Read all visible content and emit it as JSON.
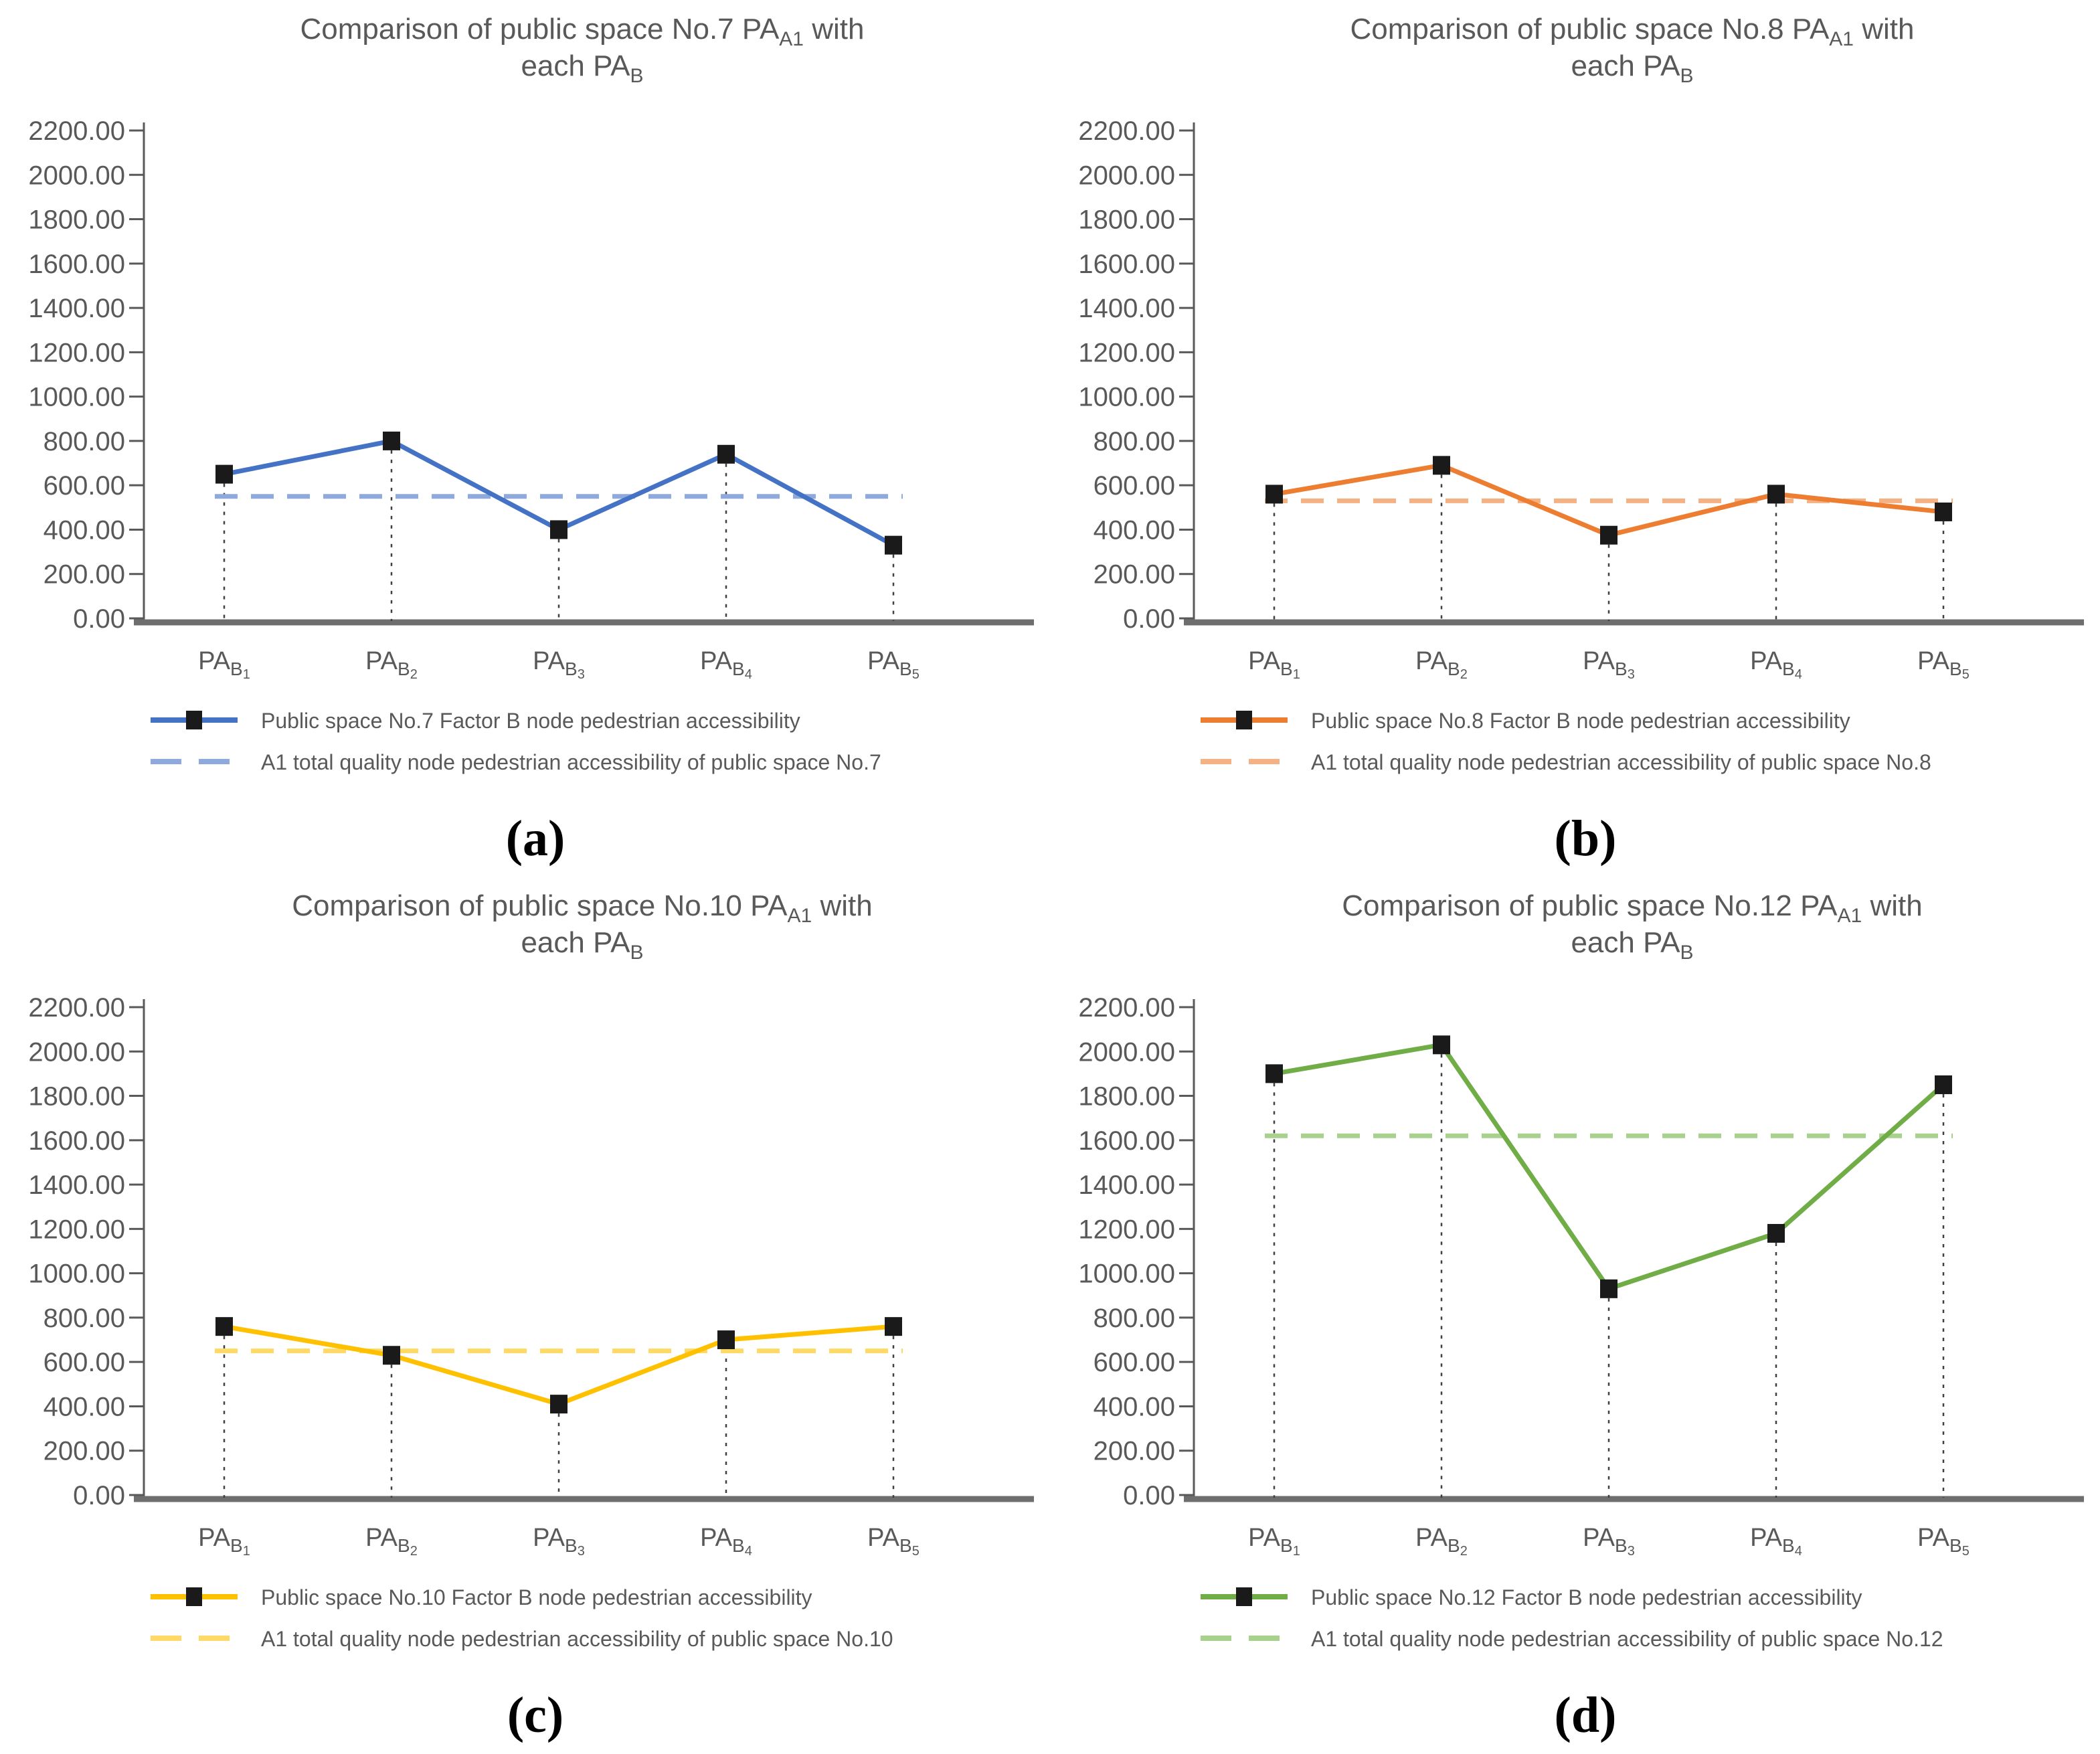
{
  "figure_title": "Comparison of public space PA_A1 with each PA_B (four panels)",
  "style": {
    "text_color": "#595959",
    "axis_color": "#595959",
    "baseline_color": "#6e6e6e",
    "drop_line_color": "#404040",
    "marker_color": "#1a1a1a",
    "background": "#ffffff"
  },
  "chart_data": [
    {
      "type": "line",
      "panel": "a",
      "caption": "(a)",
      "title": {
        "line1_pre": "Comparison of public space No.7 PA",
        "line1_sub": "A1",
        "line1_post": " with",
        "line2_pre": "each PA",
        "line2_sub": "B"
      },
      "categories": [
        {
          "base": "PA",
          "sub": "B",
          "num": "1"
        },
        {
          "base": "PA",
          "sub": "B",
          "num": "2"
        },
        {
          "base": "PA",
          "sub": "B",
          "num": "3"
        },
        {
          "base": "PA",
          "sub": "B",
          "num": "4"
        },
        {
          "base": "PA",
          "sub": "B",
          "num": "5"
        }
      ],
      "series": [
        {
          "name": "Public space No.7 Factor B node pedestrian accessibility",
          "style": "solid-marker",
          "color": "#4472C4",
          "values": [
            650,
            800,
            400,
            740,
            330
          ]
        },
        {
          "name": "A1 total quality node pedestrian accessibility of public space No.7",
          "style": "dashed",
          "color": "#8EA9DB",
          "value": 550
        }
      ],
      "ylim": [
        0,
        2200
      ],
      "ytick_step": 200,
      "ytick_labels": [
        "2200.00",
        "2000.00",
        "1800.00",
        "1600.00",
        "1400.00",
        "1200.00",
        "1000.00",
        "800.00",
        "600.00",
        "400.00",
        "200.00",
        "0.00"
      ],
      "xlabel": "",
      "ylabel": "",
      "grid": false,
      "legend_position": "bottom"
    },
    {
      "type": "line",
      "panel": "b",
      "caption": "(b)",
      "title": {
        "line1_pre": "Comparison of public space No.8 PA",
        "line1_sub": "A1",
        "line1_post": " with",
        "line2_pre": "each PA",
        "line2_sub": "B"
      },
      "categories": [
        {
          "base": "PA",
          "sub": "B",
          "num": "1"
        },
        {
          "base": "PA",
          "sub": "B",
          "num": "2"
        },
        {
          "base": "PA",
          "sub": "B",
          "num": "3"
        },
        {
          "base": "PA",
          "sub": "B",
          "num": "4"
        },
        {
          "base": "PA",
          "sub": "B",
          "num": "5"
        }
      ],
      "series": [
        {
          "name": "Public space No.8 Factor B node pedestrian accessibility",
          "style": "solid-marker",
          "color": "#ED7D31",
          "values": [
            560,
            690,
            375,
            560,
            480
          ]
        },
        {
          "name": "A1 total quality node pedestrian accessibility of public space No.8",
          "style": "dashed",
          "color": "#F4B183",
          "value": 530
        }
      ],
      "ylim": [
        0,
        2200
      ],
      "ytick_step": 200,
      "ytick_labels": [
        "2200.00",
        "2000.00",
        "1800.00",
        "1600.00",
        "1400.00",
        "1200.00",
        "1000.00",
        "800.00",
        "600.00",
        "400.00",
        "200.00",
        "0.00"
      ],
      "xlabel": "",
      "ylabel": "",
      "grid": false,
      "legend_position": "bottom"
    },
    {
      "type": "line",
      "panel": "c",
      "caption": "(c)",
      "title": {
        "line1_pre": "Comparison of public space No.10 PA",
        "line1_sub": "A1",
        "line1_post": " with",
        "line2_pre": "each PA",
        "line2_sub": "B"
      },
      "categories": [
        {
          "base": "PA",
          "sub": "B",
          "num": "1"
        },
        {
          "base": "PA",
          "sub": "B",
          "num": "2"
        },
        {
          "base": "PA",
          "sub": "B",
          "num": "3"
        },
        {
          "base": "PA",
          "sub": "B",
          "num": "4"
        },
        {
          "base": "PA",
          "sub": "B",
          "num": "5"
        }
      ],
      "series": [
        {
          "name": "Public space No.10 Factor B node pedestrian accessibility",
          "style": "solid-marker",
          "color": "#FFC000",
          "values": [
            760,
            630,
            410,
            700,
            760
          ]
        },
        {
          "name": "A1 total quality node pedestrian accessibility of public space No.10",
          "style": "dashed",
          "color": "#FFD966",
          "value": 650
        }
      ],
      "ylim": [
        0,
        2200
      ],
      "ytick_step": 200,
      "ytick_labels": [
        "2200.00",
        "2000.00",
        "1800.00",
        "1600.00",
        "1400.00",
        "1200.00",
        "1000.00",
        "800.00",
        "600.00",
        "400.00",
        "200.00",
        "0.00"
      ],
      "xlabel": "",
      "ylabel": "",
      "grid": false,
      "legend_position": "bottom"
    },
    {
      "type": "line",
      "panel": "d",
      "caption": "(d)",
      "title": {
        "line1_pre": "Comparison of public space No.12 PA",
        "line1_sub": "A1",
        "line1_post": " with",
        "line2_pre": "each PA",
        "line2_sub": "B"
      },
      "categories": [
        {
          "base": "PA",
          "sub": "B",
          "num": "1"
        },
        {
          "base": "PA",
          "sub": "B",
          "num": "2"
        },
        {
          "base": "PA",
          "sub": "B",
          "num": "3"
        },
        {
          "base": "PA",
          "sub": "B",
          "num": "4"
        },
        {
          "base": "PA",
          "sub": "B",
          "num": "5"
        }
      ],
      "series": [
        {
          "name": "Public space No.12 Factor B node pedestrian accessibility",
          "style": "solid-marker",
          "color": "#70AD47",
          "values": [
            1900,
            2030,
            930,
            1180,
            1850
          ]
        },
        {
          "name": "A1 total quality node pedestrian accessibility of public space No.12",
          "style": "dashed",
          "color": "#A9D18E",
          "value": 1620
        }
      ],
      "ylim": [
        0,
        2200
      ],
      "ytick_step": 200,
      "ytick_labels": [
        "2200.00",
        "2000.00",
        "1800.00",
        "1600.00",
        "1400.00",
        "1200.00",
        "1000.00",
        "800.00",
        "600.00",
        "400.00",
        "200.00",
        "0.00"
      ],
      "xlabel": "",
      "ylabel": "",
      "grid": false,
      "legend_position": "bottom"
    }
  ]
}
